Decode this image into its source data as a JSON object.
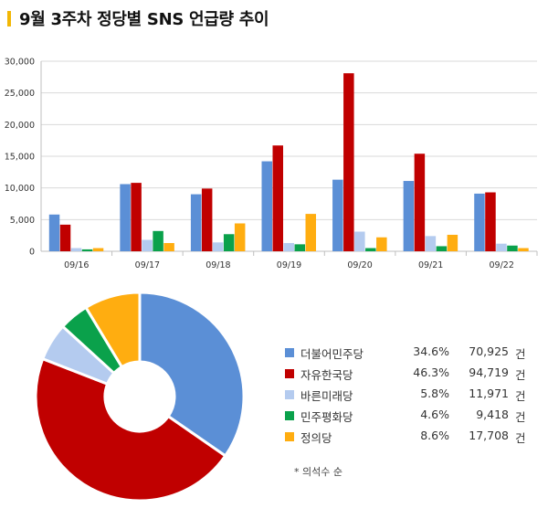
{
  "title": "9월 3주차 정당별 SNS 언급량 추이",
  "colors": [
    "#5b8fd6",
    "#c00000",
    "#b4cbef",
    "#0aa14b",
    "#ffad10"
  ],
  "chart_data": [
    {
      "type": "bar",
      "categories": [
        "09/16",
        "09/17",
        "09/18",
        "09/19",
        "09/20",
        "09/21",
        "09/22"
      ],
      "y_ticks": [
        "0",
        "5,000",
        "10,000",
        "15,000",
        "20,000",
        "25,000",
        "30,000"
      ],
      "ylim": [
        0,
        30000
      ],
      "grid": true,
      "series": [
        {
          "values": [
            5800,
            10600,
            9000,
            14200,
            11300,
            11100,
            9100
          ]
        },
        {
          "values": [
            4200,
            10800,
            9900,
            16700,
            28100,
            15400,
            9300
          ]
        },
        {
          "values": [
            500,
            1800,
            1400,
            1300,
            3100,
            2400,
            1200
          ]
        },
        {
          "values": [
            300,
            3200,
            2700,
            1100,
            500,
            800,
            900
          ]
        },
        {
          "values": [
            500,
            1300,
            4400,
            5900,
            2200,
            2600,
            500
          ]
        }
      ]
    },
    {
      "type": "pie",
      "donut": true,
      "legend_position": "right",
      "slices": [
        {
          "label": "더불어민주당",
          "percent": "34.6%",
          "count": "70,925",
          "unit": "건",
          "value": 70925
        },
        {
          "label": "자유한국당",
          "percent": "46.3%",
          "count": "94,719",
          "unit": "건",
          "value": 94719
        },
        {
          "label": "바른미래당",
          "percent": "5.8%",
          "count": "11,971",
          "unit": "건",
          "value": 11971
        },
        {
          "label": "민주평화당",
          "percent": "4.6%",
          "count": "9,418",
          "unit": "건",
          "value": 9418
        },
        {
          "label": "정의당",
          "percent": "8.6%",
          "count": "17,708",
          "unit": "건",
          "value": 17708
        }
      ],
      "footnote": "* 의석수 순"
    }
  ]
}
